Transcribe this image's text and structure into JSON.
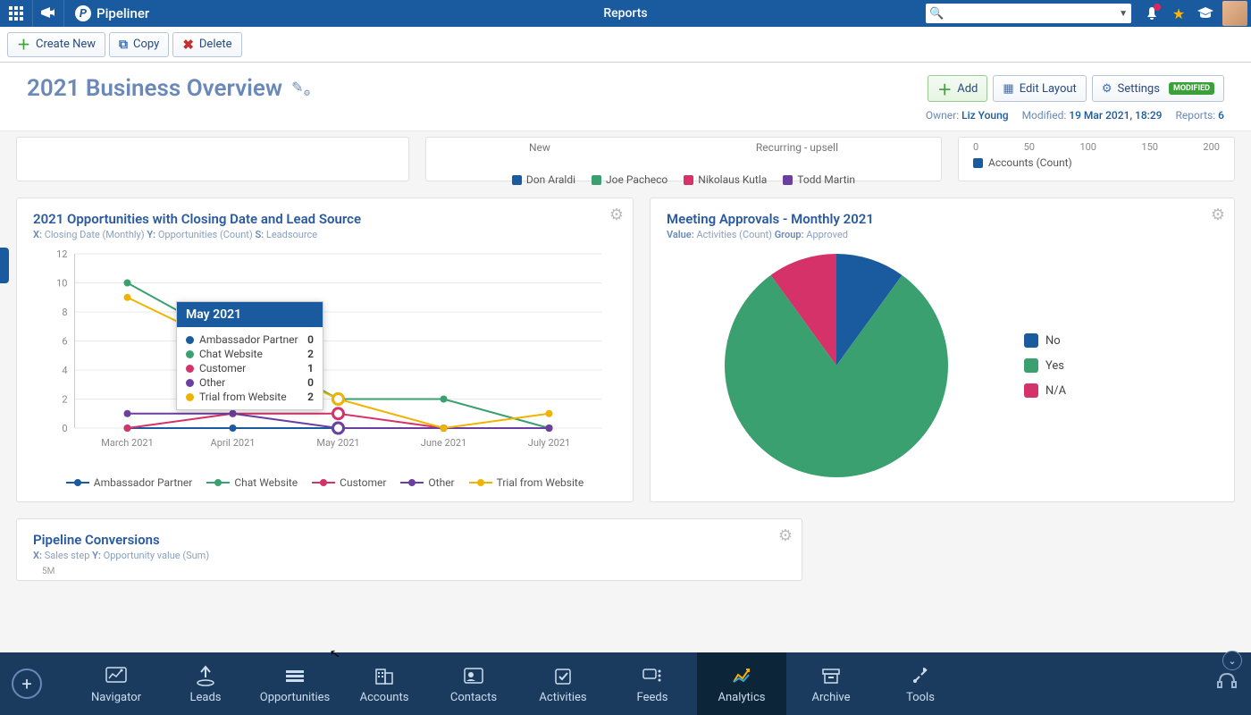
{
  "header": {
    "brand": "Pipeliner",
    "page_label": "Reports"
  },
  "toolbar": {
    "create": "Create New",
    "copy": "Copy",
    "delete": "Delete"
  },
  "title": {
    "text": "2021 Business Overview",
    "buttons": {
      "add": "Add",
      "edit_layout": "Edit Layout",
      "settings": "Settings",
      "modified_badge": "MODIFIED"
    },
    "meta": {
      "owner_label": "Owner:",
      "owner": "Liz Young",
      "modified_label": "Modified:",
      "modified": "19 Mar 2021, 18:29",
      "reports_label": "Reports:",
      "reports": "6"
    }
  },
  "cut_panels": {
    "b": {
      "headers": [
        "New",
        "Recurring - upsell"
      ],
      "legend": [
        {
          "label": "Don Araldi",
          "color": "#1a5a9e"
        },
        {
          "label": "Joe Pacheco",
          "color": "#3aa070"
        },
        {
          "label": "Nikolaus Kutla",
          "color": "#d6326a"
        },
        {
          "label": "Todd Martin",
          "color": "#6b3fa0"
        }
      ]
    },
    "c": {
      "ticks": [
        "0",
        "50",
        "100",
        "150",
        "200"
      ],
      "legend": {
        "label": "Accounts (Count)",
        "color": "#1a5a9e"
      }
    }
  },
  "line_chart": {
    "title": "2021 Opportunities with Closing Date and Lead Source",
    "sub_x_label": "X:",
    "sub_x": "Closing Date (Monthly)",
    "sub_y_label": "Y:",
    "sub_y": "Opportunities (Count)",
    "sub_s_label": "S:",
    "sub_s": "Leadsource",
    "y_ticks": [
      "0",
      "2",
      "4",
      "6",
      "8",
      "10",
      "12"
    ],
    "x_labels": [
      "March 2021",
      "April 2021",
      "May 2021",
      "June 2021",
      "July 2021"
    ],
    "series": [
      {
        "name": "Ambassador Partner",
        "color": "#1a5a9e",
        "points": [
          0,
          0,
          0,
          0,
          0
        ]
      },
      {
        "name": "Chat Website",
        "color": "#3aa070",
        "points": [
          10,
          null,
          2,
          2,
          0
        ]
      },
      {
        "name": "Customer",
        "color": "#d6326a",
        "points": [
          0,
          1,
          1,
          0,
          0
        ]
      },
      {
        "name": "Other",
        "color": "#6b3fa0",
        "points": [
          1,
          1,
          0,
          0,
          0
        ]
      },
      {
        "name": "Trial from Website",
        "color": "#f0b400",
        "points": [
          9,
          null,
          2,
          0,
          1
        ]
      }
    ],
    "tooltip": {
      "header": "May 2021",
      "rows": [
        {
          "name": "Ambassador Partner",
          "color": "#1a5a9e",
          "val": "0"
        },
        {
          "name": "Chat Website",
          "color": "#3aa070",
          "val": "2"
        },
        {
          "name": "Customer",
          "color": "#d6326a",
          "val": "1"
        },
        {
          "name": "Other",
          "color": "#6b3fa0",
          "val": "0"
        },
        {
          "name": "Trial from Website",
          "color": "#f0b400",
          "val": "2"
        }
      ]
    }
  },
  "pie_chart": {
    "title": "Meeting Approvals - Monthly 2021",
    "sub_v_label": "Value:",
    "sub_v": "Activities (Count)",
    "sub_g_label": "Group:",
    "sub_g": "Approved",
    "slices": [
      {
        "label": "No",
        "color": "#1a5a9e",
        "value": 10
      },
      {
        "label": "Yes",
        "color": "#3aa070",
        "value": 80
      },
      {
        "label": "N/A",
        "color": "#d6326a",
        "value": 10
      }
    ]
  },
  "conversions": {
    "title": "Pipeline Conversions",
    "sub_x_label": "X:",
    "sub_x": "Sales step",
    "sub_y_label": "Y:",
    "sub_y": "Opportunity value (Sum)",
    "first_tick": "5M"
  },
  "bottom_nav": {
    "items": [
      {
        "label": "Navigator",
        "icon": "nav"
      },
      {
        "label": "Leads",
        "icon": "leads"
      },
      {
        "label": "Opportunities",
        "icon": "opps"
      },
      {
        "label": "Accounts",
        "icon": "acct"
      },
      {
        "label": "Contacts",
        "icon": "cont"
      },
      {
        "label": "Activities",
        "icon": "act"
      },
      {
        "label": "Feeds",
        "icon": "feeds"
      },
      {
        "label": "Analytics",
        "icon": "anl",
        "active": true
      },
      {
        "label": "Archive",
        "icon": "arch"
      },
      {
        "label": "Tools",
        "icon": "tools"
      }
    ]
  }
}
